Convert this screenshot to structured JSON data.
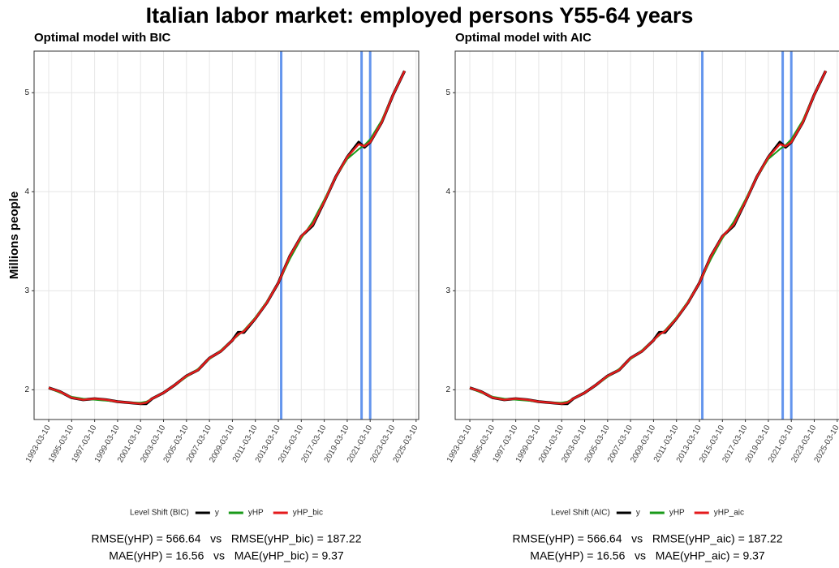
{
  "title": "Italian labor market: employed persons Y55-64 years",
  "chart_data": [
    {
      "type": "line",
      "title": "Optimal model with BIC",
      "ylabel": "Millions people",
      "legend_title": "Level Shift (BIC)",
      "x": [
        "1993-03-10",
        "1994-03-10",
        "1995-03-10",
        "1996-03-10",
        "1997-03-10",
        "1998-03-10",
        "1999-03-10",
        "2000-03-10",
        "2001-03-10",
        "2001-09-10",
        "2002-03-10",
        "2003-03-10",
        "2004-03-10",
        "2005-03-10",
        "2006-03-10",
        "2007-03-10",
        "2008-03-10",
        "2009-03-10",
        "2009-09-10",
        "2010-03-10",
        "2011-03-10",
        "2012-03-10",
        "2013-03-10",
        "2014-03-10",
        "2015-03-10",
        "2016-03-10",
        "2017-03-10",
        "2018-03-10",
        "2019-03-10",
        "2020-03-10",
        "2020-09-10",
        "2021-03-10",
        "2022-03-10",
        "2023-03-10",
        "2024-03-10"
      ],
      "series": [
        {
          "name": "y",
          "color": "#000000",
          "values": [
            2.02,
            1.98,
            1.92,
            1.9,
            1.91,
            1.9,
            1.88,
            1.87,
            1.86,
            1.86,
            1.91,
            1.97,
            2.05,
            2.14,
            2.2,
            2.32,
            2.39,
            2.5,
            2.58,
            2.58,
            2.72,
            2.88,
            3.08,
            3.35,
            3.55,
            3.66,
            3.9,
            4.15,
            4.35,
            4.5,
            4.45,
            4.5,
            4.7,
            4.98,
            5.22
          ]
        },
        {
          "name": "yHP",
          "color": "#1a9a1a",
          "values": [
            2.02,
            1.97,
            1.93,
            1.91,
            1.9,
            1.89,
            1.88,
            1.87,
            1.87,
            1.88,
            1.91,
            1.97,
            2.05,
            2.13,
            2.21,
            2.31,
            2.4,
            2.5,
            2.55,
            2.6,
            2.73,
            2.89,
            3.08,
            3.32,
            3.53,
            3.7,
            3.92,
            4.15,
            4.33,
            4.43,
            4.47,
            4.53,
            4.72,
            4.98,
            5.22
          ]
        },
        {
          "name": "yHP_bic",
          "color": "#e41a1c",
          "values": [
            2.02,
            1.98,
            1.92,
            1.9,
            1.91,
            1.9,
            1.88,
            1.87,
            1.86,
            1.87,
            1.91,
            1.97,
            2.05,
            2.14,
            2.2,
            2.32,
            2.39,
            2.5,
            2.56,
            2.59,
            2.72,
            2.88,
            3.08,
            3.35,
            3.55,
            3.67,
            3.9,
            4.15,
            4.35,
            4.48,
            4.46,
            4.5,
            4.7,
            4.98,
            5.22
          ]
        }
      ],
      "level_shifts": [
        "2013-06-10",
        "2020-06-10",
        "2021-03-10"
      ],
      "level_shift_color": "#6495ed",
      "xlim": [
        "1991-12-01",
        "2025-06-01"
      ],
      "xticks": [
        "1993-03-10",
        "1995-03-10",
        "1997-03-10",
        "1999-03-10",
        "2001-03-10",
        "2003-03-10",
        "2005-03-10",
        "2007-03-10",
        "2009-03-10",
        "2011-03-10",
        "2013-03-10",
        "2015-03-10",
        "2017-03-10",
        "2019-03-10",
        "2021-03-10",
        "2023-03-10",
        "2025-03-10"
      ],
      "ylim": [
        1.7,
        5.42
      ],
      "yticks": [
        2,
        3,
        4,
        5
      ],
      "grid": true,
      "annotations": [
        "RMSE(yHP) = 566.64   vs   RMSE(yHP_bic) = 187.22",
        "MAE(yHP) = 16.56   vs   MAE(yHP_bic) = 9.37"
      ]
    },
    {
      "type": "line",
      "title": "Optimal model with AIC",
      "legend_title": "Level Shift (AIC)",
      "x": [
        "1993-03-10",
        "1994-03-10",
        "1995-03-10",
        "1996-03-10",
        "1997-03-10",
        "1998-03-10",
        "1999-03-10",
        "2000-03-10",
        "2001-03-10",
        "2001-09-10",
        "2002-03-10",
        "2003-03-10",
        "2004-03-10",
        "2005-03-10",
        "2006-03-10",
        "2007-03-10",
        "2008-03-10",
        "2009-03-10",
        "2009-09-10",
        "2010-03-10",
        "2011-03-10",
        "2012-03-10",
        "2013-03-10",
        "2014-03-10",
        "2015-03-10",
        "2016-03-10",
        "2017-03-10",
        "2018-03-10",
        "2019-03-10",
        "2020-03-10",
        "2020-09-10",
        "2021-03-10",
        "2022-03-10",
        "2023-03-10",
        "2024-03-10"
      ],
      "series": [
        {
          "name": "y",
          "color": "#000000",
          "values": [
            2.02,
            1.98,
            1.92,
            1.9,
            1.91,
            1.9,
            1.88,
            1.87,
            1.86,
            1.86,
            1.91,
            1.97,
            2.05,
            2.14,
            2.2,
            2.32,
            2.39,
            2.5,
            2.58,
            2.58,
            2.72,
            2.88,
            3.08,
            3.35,
            3.55,
            3.66,
            3.9,
            4.15,
            4.35,
            4.5,
            4.45,
            4.5,
            4.7,
            4.98,
            5.22
          ]
        },
        {
          "name": "yHP",
          "color": "#1a9a1a",
          "values": [
            2.02,
            1.97,
            1.93,
            1.91,
            1.9,
            1.89,
            1.88,
            1.87,
            1.87,
            1.88,
            1.91,
            1.97,
            2.05,
            2.13,
            2.21,
            2.31,
            2.4,
            2.5,
            2.55,
            2.6,
            2.73,
            2.89,
            3.08,
            3.32,
            3.53,
            3.7,
            3.92,
            4.15,
            4.33,
            4.43,
            4.47,
            4.53,
            4.72,
            4.98,
            5.22
          ]
        },
        {
          "name": "yHP_aic",
          "color": "#e41a1c",
          "values": [
            2.02,
            1.98,
            1.92,
            1.9,
            1.91,
            1.9,
            1.88,
            1.87,
            1.86,
            1.87,
            1.91,
            1.97,
            2.05,
            2.14,
            2.2,
            2.32,
            2.39,
            2.5,
            2.56,
            2.59,
            2.72,
            2.88,
            3.08,
            3.35,
            3.55,
            3.67,
            3.9,
            4.15,
            4.35,
            4.48,
            4.46,
            4.5,
            4.7,
            4.98,
            5.22
          ]
        }
      ],
      "level_shifts": [
        "2013-06-10",
        "2020-06-10",
        "2021-03-10"
      ],
      "level_shift_color": "#6495ed",
      "xlim": [
        "1991-12-01",
        "2025-06-01"
      ],
      "xticks": [
        "1993-03-10",
        "1995-03-10",
        "1997-03-10",
        "1999-03-10",
        "2001-03-10",
        "2003-03-10",
        "2005-03-10",
        "2007-03-10",
        "2009-03-10",
        "2011-03-10",
        "2013-03-10",
        "2015-03-10",
        "2017-03-10",
        "2019-03-10",
        "2021-03-10",
        "2023-03-10",
        "2025-03-10"
      ],
      "ylim": [
        1.7,
        5.42
      ],
      "yticks": [
        2,
        3,
        4,
        5
      ],
      "grid": true,
      "annotations": [
        "RMSE(yHP) = 566.64   vs   RMSE(yHP_aic) = 187.22",
        "MAE(yHP) = 16.56   vs   MAE(yHP_aic) = 9.37"
      ]
    }
  ]
}
